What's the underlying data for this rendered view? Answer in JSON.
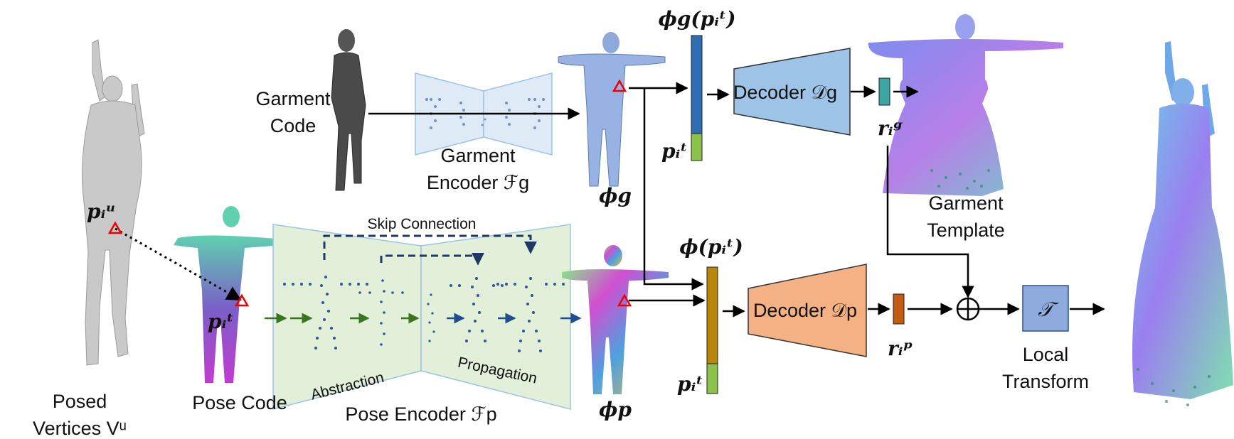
{
  "labels": {
    "garment_code": [
      "Garment",
      "Code"
    ],
    "garment_encoder": [
      "Garment",
      "Encoder ℱg"
    ],
    "pose_encoder": "Pose Encoder ℱp",
    "skip_connection": "Skip Connection",
    "abstraction": "Abstraction",
    "propagation": "Propagation",
    "pose_code": "Pose Code",
    "posed_vertices": [
      "Posed",
      "Vertices Vᵘ"
    ],
    "decoder_g": "Decoder 𝒟g",
    "decoder_p": "Decoder 𝒟p",
    "garment_template": [
      "Garment",
      "Template"
    ],
    "local_transform": [
      "Local",
      "Transform"
    ],
    "transform_symbol": "𝒯",
    "plus_symbol": "⊕"
  },
  "math": {
    "p_u": "pᵢᵘ",
    "p_t_pose": "pᵢᵗ",
    "phi_g": "ϕg",
    "phi_p": "ϕp",
    "phi_g_pt": "ϕg(pᵢᵗ)",
    "phi_pt": "ϕ(pᵢᵗ)",
    "p_t_top": "pᵢᵗ",
    "p_t_bottom": "pᵢᵗ",
    "r_g": "rᵢᵍ",
    "r_p": "rᵢᵖ"
  },
  "colors": {
    "garment_feature": "#2f6db5",
    "pose_feature": "#b8860b",
    "coord_feature": "#8bc34a",
    "decoder_g": "#9dc3e6",
    "decoder_p": "#f4b183",
    "r_g": "#3aa6a6",
    "r_p": "#c55a11",
    "pose_encoder_bg": "#e2efd9",
    "garment_encoder_bg": "#deebf7",
    "transform_box": "#8faadc",
    "skip_line": "#1f3864",
    "abstraction_arrow": "#38761d",
    "propagation_arrow": "#1f4e8c"
  }
}
